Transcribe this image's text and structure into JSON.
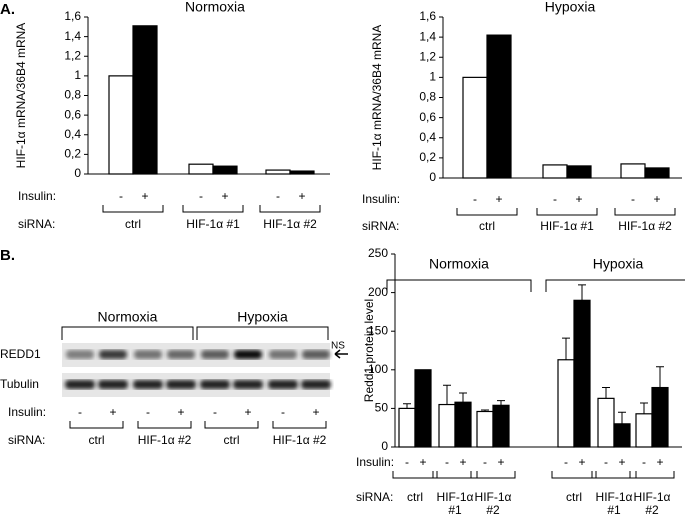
{
  "panel_labels": [
    "A.",
    "B."
  ],
  "chart_data": [
    {
      "type": "bar",
      "title": "Normoxia",
      "ylabel": "HIF-1α mRNA/36B4 mRNA",
      "ylim": [
        0,
        1.6
      ],
      "yticks": [
        0,
        {
          "value": 0.2,
          "label": "0,2"
        },
        {
          "value": 0.4,
          "label": "0,4"
        },
        {
          "value": 0.6,
          "label": "0,6"
        },
        {
          "value": 0.8,
          "label": "0,8"
        },
        1,
        {
          "value": 1.2,
          "label": "1,2"
        },
        {
          "value": 1.4,
          "label": "1,4"
        },
        {
          "value": 1.6,
          "label": "1,6"
        }
      ],
      "categories": [
        "ctrl",
        "HIF-1α #1",
        "HIF-1α #2"
      ],
      "series": [
        {
          "name": "-",
          "color": "#ffffff",
          "values": [
            1.0,
            0.1,
            0.04
          ]
        },
        {
          "name": "+",
          "color": "#000000",
          "values": [
            1.51,
            0.08,
            0.03
          ]
        }
      ],
      "insulin_label": "Insulin:",
      "sirna_label": "siRNA:"
    },
    {
      "type": "bar",
      "title": "Hypoxia",
      "ylabel": "HIF-1α mRNA/36B4 mRNA",
      "ylim": [
        0,
        1.6
      ],
      "yticks": [
        0,
        {
          "value": 0.2,
          "label": "0,2"
        },
        {
          "value": 0.4,
          "label": "0,4"
        },
        {
          "value": 0.6,
          "label": "0,6"
        },
        {
          "value": 0.8,
          "label": "0,8"
        },
        1,
        {
          "value": 1.2,
          "label": "1,2"
        },
        {
          "value": 1.4,
          "label": "1,4"
        },
        {
          "value": 1.6,
          "label": "1,6"
        }
      ],
      "categories": [
        "ctrl",
        "HIF-1α #1",
        "HIF-1α #2"
      ],
      "series": [
        {
          "name": "-",
          "color": "#ffffff",
          "values": [
            1.0,
            0.13,
            0.14
          ]
        },
        {
          "name": "+",
          "color": "#000000",
          "values": [
            1.42,
            0.12,
            0.1
          ]
        }
      ],
      "insulin_label": "Insulin:",
      "sirna_label": "siRNA:"
    },
    {
      "type": "bar",
      "ylabel": "Redd1 protein level",
      "ylim": [
        0,
        250
      ],
      "yticks": [
        0,
        50,
        100,
        150,
        200,
        250
      ],
      "groups": [
        "Normoxia",
        "Hypoxia"
      ],
      "categories": [
        "ctrl",
        "HIF-1α #1",
        "HIF-1α #2",
        "ctrl",
        "HIF-1α #1",
        "HIF-1α #2"
      ],
      "series": [
        {
          "name": "-",
          "color": "#ffffff",
          "values": [
            50,
            55,
            46,
            113,
            63,
            43
          ],
          "errors": [
            6,
            25,
            2,
            28,
            14,
            14
          ]
        },
        {
          "name": "+",
          "color": "#000000",
          "values": [
            100,
            58,
            54,
            190,
            30,
            77
          ],
          "errors": [
            null,
            12,
            6,
            20,
            15,
            27
          ]
        }
      ],
      "insulin_label": "Insulin:",
      "sirna_label": "siRNA:"
    }
  ],
  "blot": {
    "conditions": [
      "Normoxia",
      "Hypoxia"
    ],
    "rows": [
      "REDD1",
      "Tubulin"
    ],
    "ns": "NS",
    "insulin_label": "Insulin:",
    "insulin": [
      "-",
      "+",
      "-",
      "+",
      "-",
      "+",
      "-",
      "+"
    ],
    "sirna_label": "siRNA:",
    "sirna": [
      "ctrl",
      "HIF-1α #2",
      "ctrl",
      "HIF-1α #2"
    ]
  }
}
